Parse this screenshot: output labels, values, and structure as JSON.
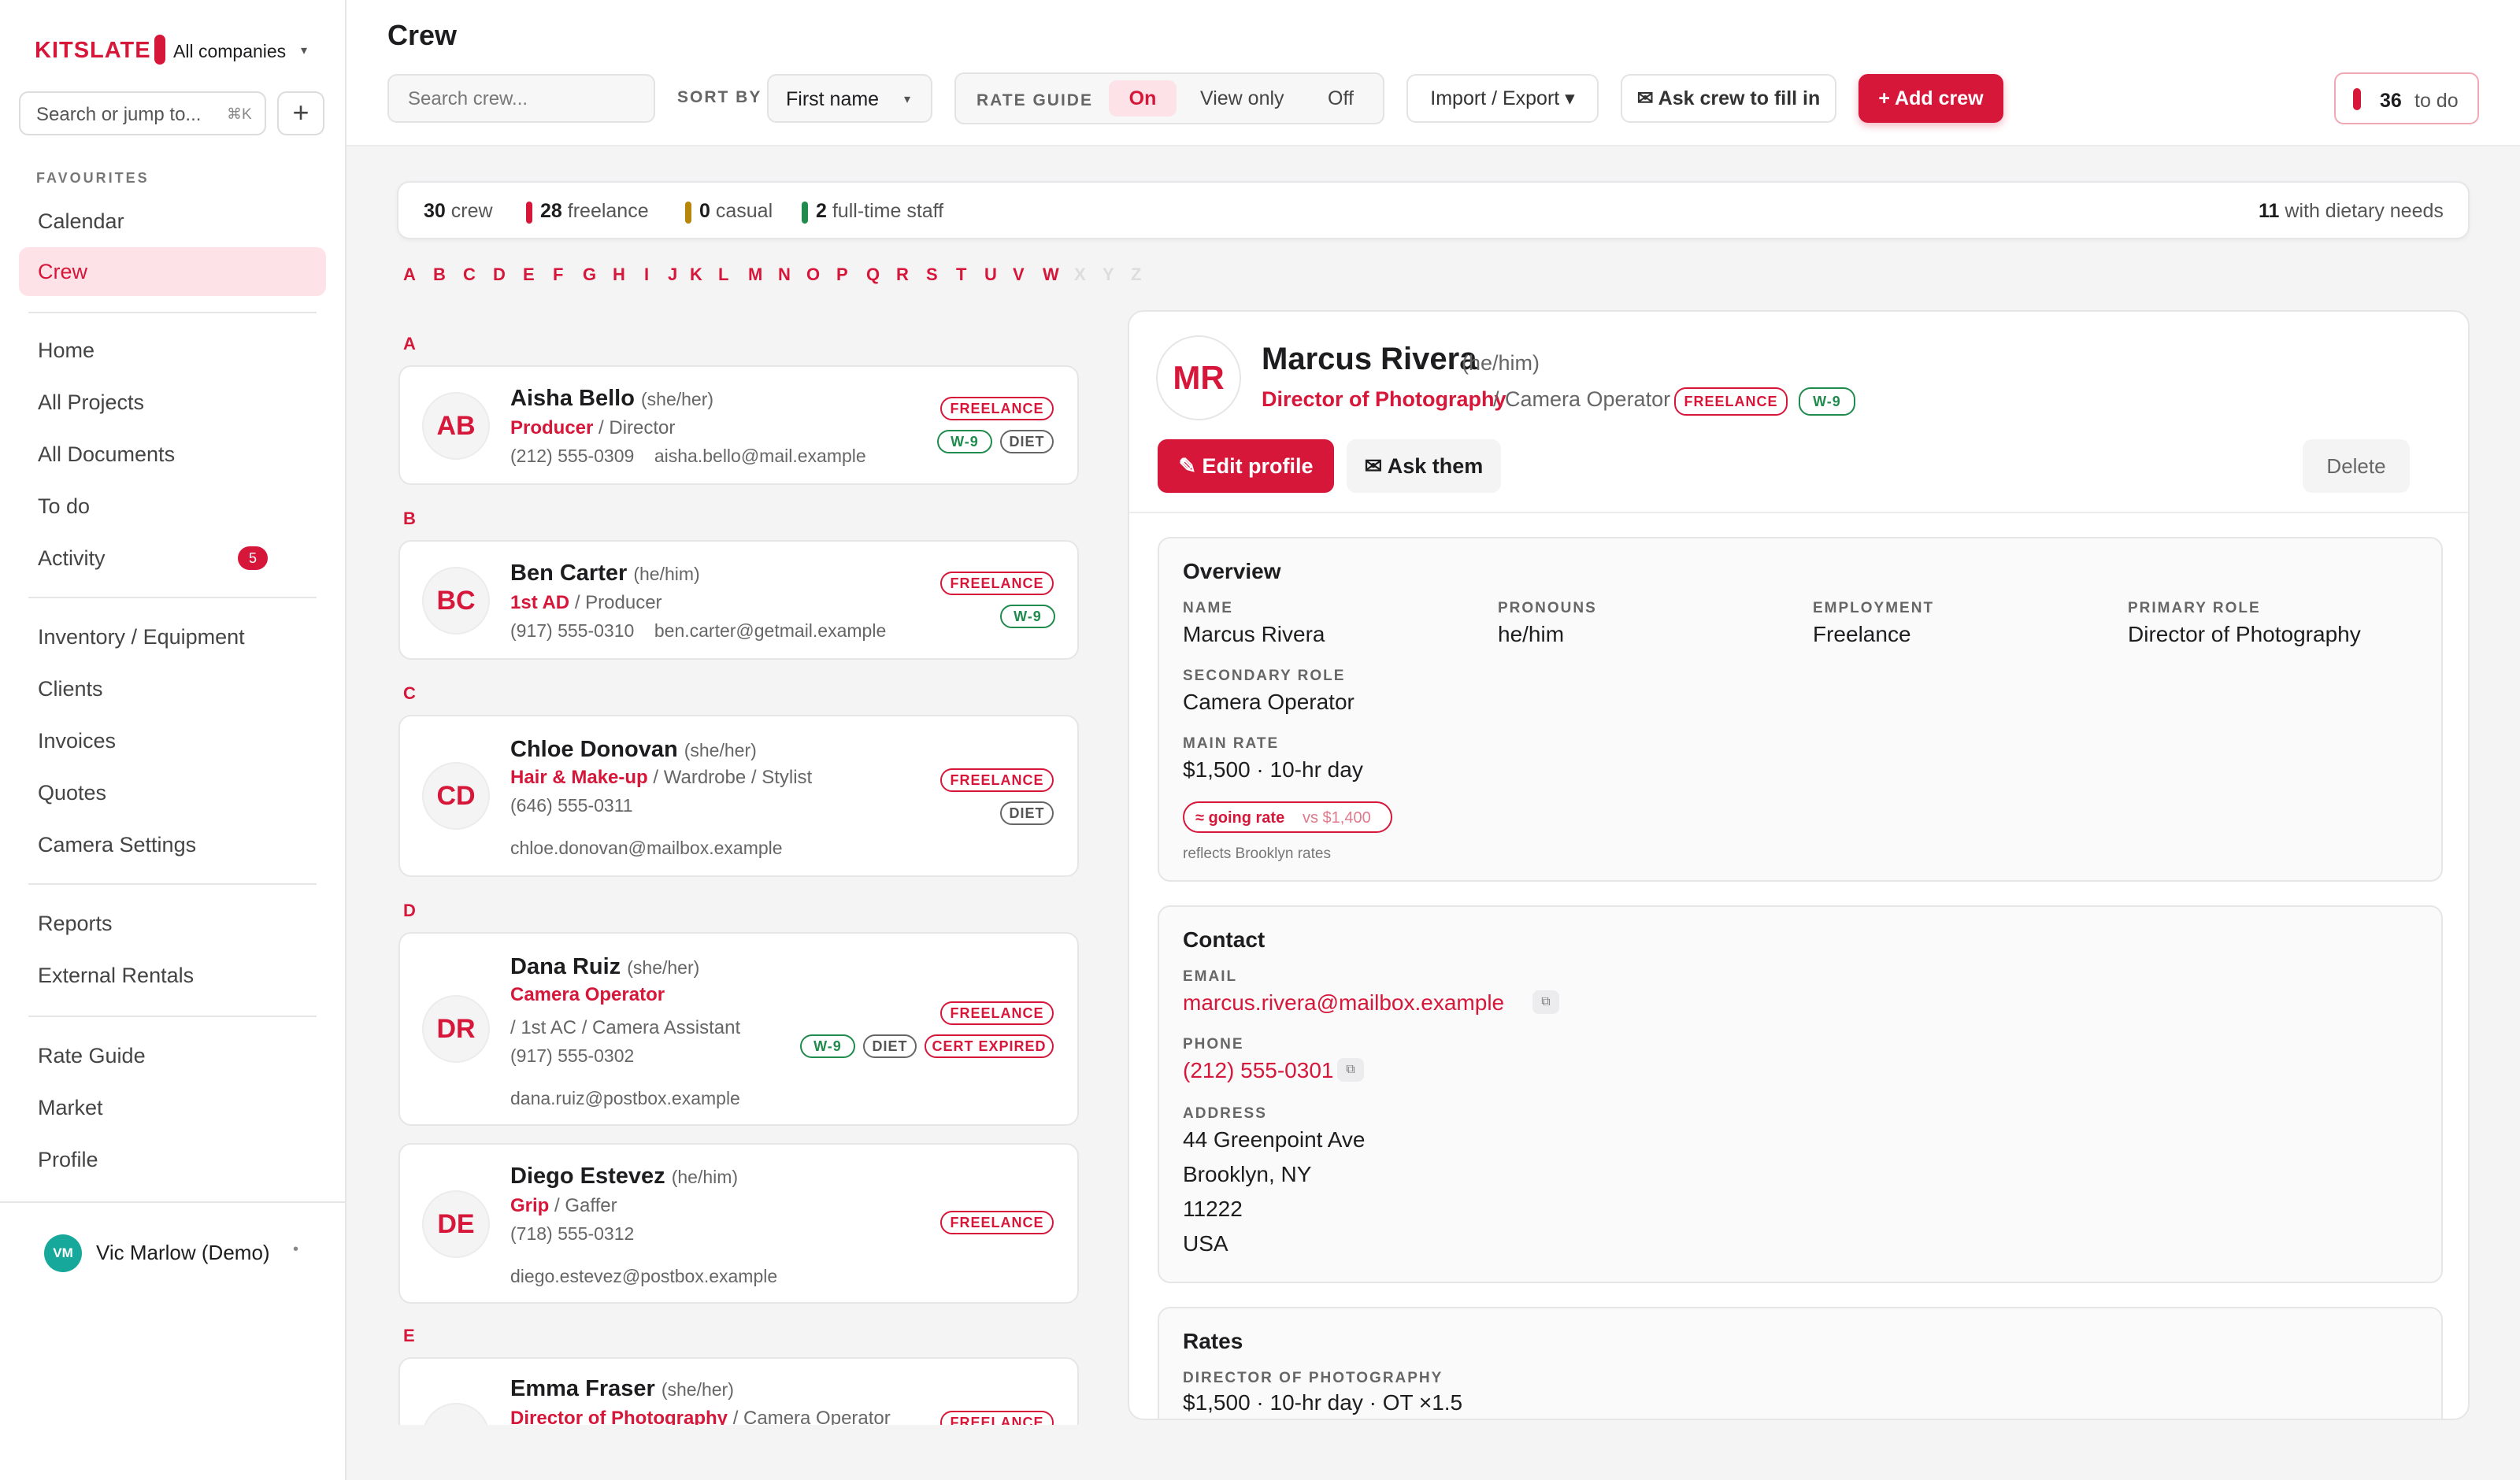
{
  "sidebar": {
    "logo": "KITSLATE",
    "company": "All companies",
    "search_placeholder": "Search or jump to...",
    "search_shortcut": "⌘K",
    "add_label": "+",
    "favourites_label": "FAVOURITES",
    "items": [
      {
        "label": "Calendar"
      },
      {
        "label": "Crew"
      },
      {
        "label": "Home"
      },
      {
        "label": "All Projects"
      },
      {
        "label": "All Documents"
      },
      {
        "label": "To do"
      },
      {
        "label": "Activity",
        "badge": "5"
      },
      {
        "label": "Inventory / Equipment"
      },
      {
        "label": "Clients"
      },
      {
        "label": "Invoices"
      },
      {
        "label": "Quotes"
      },
      {
        "label": "Camera Settings"
      },
      {
        "label": "Reports"
      },
      {
        "label": "External Rentals"
      },
      {
        "label": "Rate Guide"
      },
      {
        "label": "Market"
      },
      {
        "label": "Profile"
      }
    ],
    "user": {
      "initials": "VM",
      "name": "Vic Marlow (Demo)"
    }
  },
  "header": {
    "title": "Crew",
    "search_placeholder": "Search crew...",
    "sort_label": "SORT BY",
    "sort_value": "First name",
    "rate_guide_label": "RATE GUIDE",
    "rate_options": [
      "On",
      "View only",
      "Off"
    ],
    "rate_selected": "On",
    "import_export": "Import / Export ▾",
    "ask_crew": "✉ Ask crew to fill in",
    "add_crew": "+ Add crew",
    "todo_count": "36",
    "todo_label": "to do"
  },
  "summary": {
    "crew_n": "30",
    "crew_l": "crew",
    "freelance_n": "28",
    "freelance_l": "freelance",
    "casual_n": "0",
    "casual_l": "casual",
    "staff_n": "2",
    "staff_l": "full-time staff",
    "dietary_n": "11",
    "dietary_l": "with dietary needs",
    "colors": {
      "freelance": "#d6173a",
      "casual": "#b8860b",
      "staff": "#1f8b4c"
    }
  },
  "alphabet": [
    "A",
    "B",
    "C",
    "D",
    "E",
    "F",
    "G",
    "H",
    "I",
    "J",
    "K",
    "L",
    "M",
    "N",
    "O",
    "P",
    "Q",
    "R",
    "S",
    "T",
    "U",
    "V",
    "W",
    "X",
    "Y",
    "Z"
  ],
  "alphabet_disabled": [
    "X",
    "Y",
    "Z"
  ],
  "crew": [
    {
      "letter": "A",
      "initials": "AB",
      "name": "Aisha Bello",
      "pronouns": "(she/her)",
      "role": "Producer",
      "secondary": "/ Director",
      "phone": "(212) 555-0309",
      "email": "aisha.bello@mail.example",
      "tags": [
        "FREELANCE",
        "W-9",
        "DIET"
      ]
    },
    {
      "letter": "B",
      "initials": "BC",
      "name": "Ben Carter",
      "pronouns": "(he/him)",
      "role": "1st AD",
      "secondary": "/ Producer",
      "phone": "(917) 555-0310",
      "email": "ben.carter@getmail.example",
      "tags": [
        "FREELANCE",
        "W-9"
      ]
    },
    {
      "letter": "C",
      "initials": "CD",
      "name": "Chloe Donovan",
      "pronouns": "(she/her)",
      "role": "Hair & Make-up",
      "secondary": "/ Wardrobe / Stylist",
      "phone": "(646) 555-0311",
      "email": "chloe.donovan@mailbox.example",
      "tags": [
        "FREELANCE",
        "DIET"
      ]
    },
    {
      "letter": "D",
      "initials": "DR",
      "name": "Dana Ruiz",
      "pronouns": "(she/her)",
      "role": "Camera Operator",
      "secondary": "/ 1st AC / Camera Assistant",
      "phone": "(917) 555-0302",
      "email": "dana.ruiz@postbox.example",
      "tags": [
        "FREELANCE",
        "W-9",
        "DIET",
        "CERT EXPIRED"
      ]
    },
    {
      "letter": "",
      "initials": "DE",
      "name": "Diego Estevez",
      "pronouns": "(he/him)",
      "role": "Grip",
      "secondary": "/ Gaffer",
      "phone": "(718) 555-0312",
      "email": "diego.estevez@postbox.example",
      "tags": [
        "FREELANCE"
      ]
    },
    {
      "letter": "E",
      "initials": "EF",
      "name": "Emma Fraser",
      "pronouns": "(she/her)",
      "role": "Director of Photography",
      "secondary": "/ Camera Operator",
      "tags": [
        "FREELANCE"
      ]
    }
  ],
  "detail": {
    "initials": "MR",
    "name": "Marcus Rivera",
    "pronouns": "(he/him)",
    "role": "Director of Photography",
    "secondary": "/ Camera Operator",
    "tags": [
      "FREELANCE",
      "W-9"
    ],
    "edit": "✎ Edit profile",
    "ask": "✉ Ask them",
    "delete": "Delete",
    "overview": {
      "title": "Overview",
      "name_l": "NAME",
      "name_v": "Marcus Rivera",
      "pronouns_l": "PRONOUNS",
      "pronouns_v": "he/him",
      "employment_l": "EMPLOYMENT",
      "employment_v": "Freelance",
      "primary_l": "PRIMARY ROLE",
      "primary_v": "Director of Photography",
      "secondary_l": "SECONDARY ROLE",
      "secondary_v": "Camera Operator",
      "rate_l": "MAIN RATE",
      "rate_v": "$1,500 · 10-hr day",
      "going": "≈ going rate",
      "vs": "vs $1,400",
      "note": "reflects Brooklyn rates"
    },
    "contact": {
      "title": "Contact",
      "email_l": "EMAIL",
      "email_v": "marcus.rivera@mailbox.example",
      "phone_l": "PHONE",
      "phone_v": "(212) 555-0301",
      "address_l": "ADDRESS",
      "address": [
        "44 Greenpoint Ave",
        "Brooklyn, NY",
        "11222",
        "USA"
      ]
    },
    "rates": {
      "title": "Rates",
      "role_l": "DIRECTOR OF PHOTOGRAPHY",
      "role_v": "$1,500 · 10-hr day · OT ×1.5"
    }
  }
}
